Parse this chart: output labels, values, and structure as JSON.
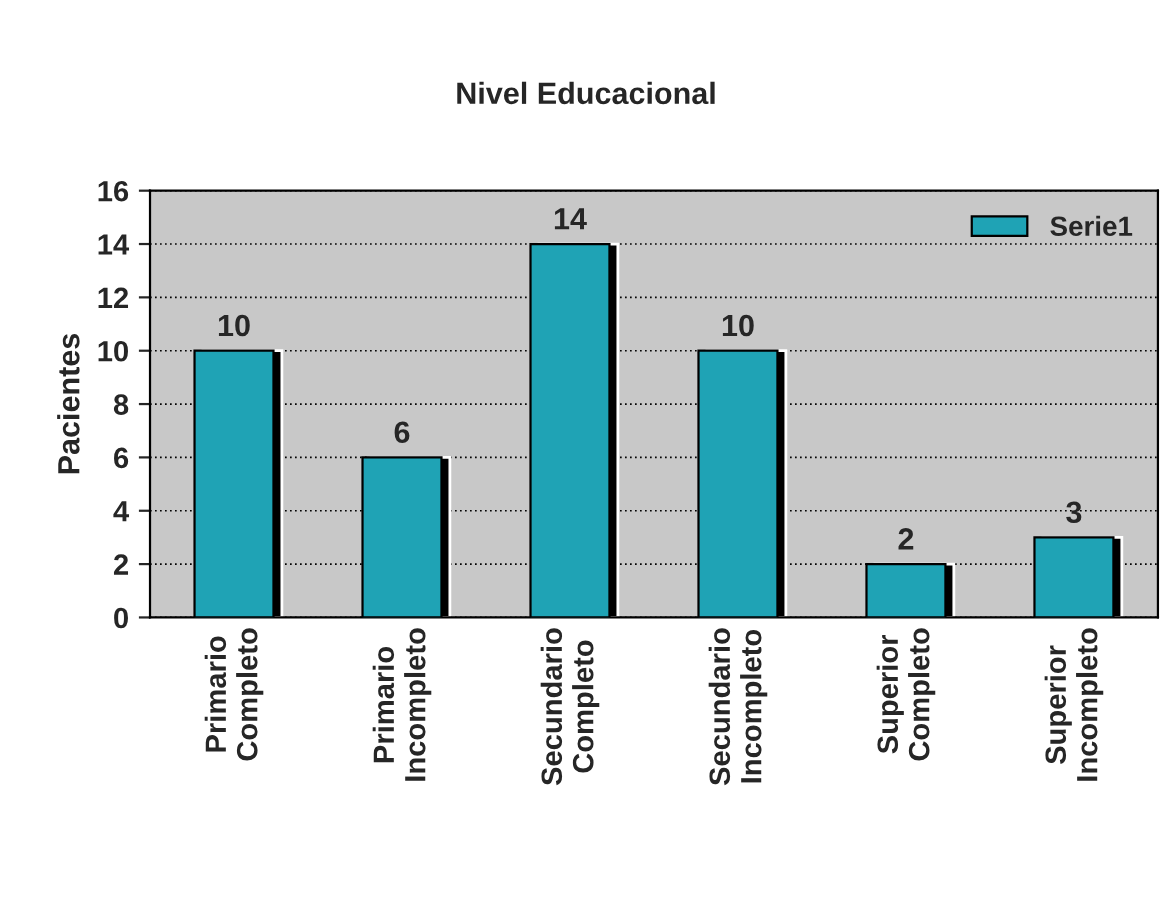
{
  "chart_data": {
    "type": "bar",
    "title": "Nivel Educacional",
    "ylabel": "Pacientes",
    "categories": [
      "Primario\nCompleto",
      "Primario\nIncompleto",
      "Secundario\nCompleto",
      "Secundario\nIncompleto",
      "Superior\nCompleto",
      "Superior\nIncompleto"
    ],
    "series": [
      {
        "name": "Serie1",
        "color": "#1fa3b5",
        "values": [
          10,
          6,
          14,
          10,
          2,
          3
        ]
      }
    ],
    "ylim": [
      0,
      16
    ],
    "yticks": [
      0,
      2,
      4,
      6,
      8,
      10,
      12,
      14,
      16
    ],
    "grid": "y",
    "legend": "top right",
    "data_labels": true
  }
}
